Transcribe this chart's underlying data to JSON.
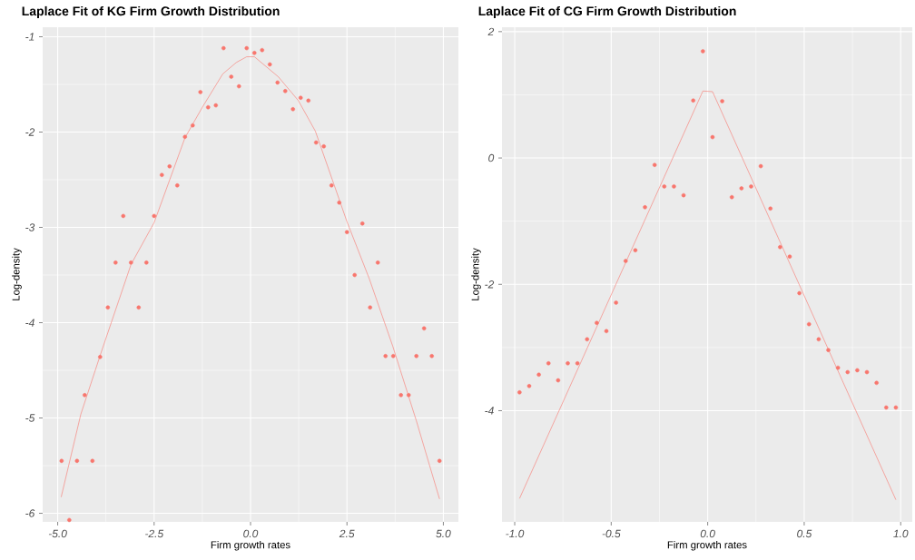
{
  "chart_data": [
    {
      "type": "scatter",
      "title": "Laplace Fit of KG Firm Growth Distribution",
      "xlabel": "Firm growth rates",
      "ylabel": "Log-density",
      "xlim": [
        -5.39,
        5.39
      ],
      "ylim": [
        -6.09,
        -0.9
      ],
      "xticks": [
        {
          "value": -5,
          "label": "-5.0"
        },
        {
          "value": -2.5,
          "label": "-2.5"
        },
        {
          "value": 0,
          "label": "0.0"
        },
        {
          "value": 2.5,
          "label": "2.5"
        },
        {
          "value": 5,
          "label": "5.0"
        }
      ],
      "yticks": [
        -6,
        -5,
        -4,
        -3,
        -2,
        -1
      ],
      "grid": true,
      "series": [
        {
          "color": "#f8766d",
          "marker": "circle",
          "x": [
            -4.9,
            -4.7,
            -4.5,
            -4.3,
            -4.1,
            -3.9,
            -3.7,
            -3.5,
            -3.3,
            -3.1,
            -2.9,
            -2.7,
            -2.5,
            -2.3,
            -2.1,
            -1.9,
            -1.7,
            -1.5,
            -1.3,
            -1.1,
            -0.9,
            -0.7,
            -0.5,
            -0.3,
            -0.1,
            0.1,
            0.3,
            0.5,
            0.7,
            0.9,
            1.1,
            1.3,
            1.5,
            1.7,
            1.9,
            2.1,
            2.3,
            2.5,
            2.7,
            2.9,
            3.1,
            3.3,
            3.5,
            3.7,
            3.9,
            4.1,
            4.3,
            4.5,
            4.7,
            4.9
          ],
          "values": [
            -5.45,
            -6.07,
            -5.45,
            -4.76,
            -5.45,
            -4.36,
            -3.84,
            -3.37,
            -2.88,
            -3.37,
            -3.84,
            -3.37,
            -2.88,
            -2.45,
            -2.36,
            -2.56,
            -2.05,
            -1.93,
            -1.58,
            -1.74,
            -1.72,
            -1.12,
            -1.42,
            -1.52,
            -1.12,
            -1.17,
            -1.14,
            -1.29,
            -1.48,
            -1.57,
            -1.76,
            -1.64,
            -1.67,
            -2.11,
            -2.15,
            -2.56,
            -2.74,
            -3.05,
            -3.5,
            -2.96,
            -3.84,
            -3.37,
            -4.35,
            -4.35,
            -4.76,
            -4.76,
            -4.35,
            -4.06,
            -4.35,
            -5.45
          ]
        },
        {
          "type": "line",
          "color": "#f8766d",
          "marker": "none",
          "x": [
            -4.91,
            -4.4,
            -3.88,
            -3.1,
            -2.5,
            -1.7,
            -1.25,
            -0.72,
            -0.37,
            -0.1,
            0.1,
            0.72,
            1.24,
            1.68,
            2.5,
            3.08,
            3.69,
            4.3,
            4.9
          ],
          "values": [
            -5.83,
            -4.96,
            -4.32,
            -3.39,
            -2.95,
            -2.06,
            -1.74,
            -1.39,
            -1.27,
            -1.21,
            -1.21,
            -1.42,
            -1.67,
            -1.99,
            -2.94,
            -3.54,
            -4.25,
            -5.03,
            -5.85
          ]
        }
      ]
    },
    {
      "type": "scatter",
      "title": "Laplace Fit of CG Firm Growth Distribution",
      "xlabel": "Firm growth rates",
      "ylabel": "Log-density",
      "xlim": [
        -1.066,
        1.06
      ],
      "ylim": [
        -5.76,
        2.07
      ],
      "xticks": [
        {
          "value": -1,
          "label": "-1.0"
        },
        {
          "value": -0.5,
          "label": "-0.5"
        },
        {
          "value": 0,
          "label": "0.0"
        },
        {
          "value": 0.5,
          "label": "0.5"
        },
        {
          "value": 1,
          "label": "1.0"
        }
      ],
      "yticks": [
        -4,
        -2,
        0,
        2
      ],
      "grid": true,
      "series": [
        {
          "color": "#f8766d",
          "marker": "circle",
          "x": [
            -0.975,
            -0.925,
            -0.875,
            -0.825,
            -0.775,
            -0.725,
            -0.675,
            -0.625,
            -0.575,
            -0.525,
            -0.475,
            -0.425,
            -0.375,
            -0.325,
            -0.275,
            -0.225,
            -0.175,
            -0.125,
            -0.075,
            -0.025,
            0.025,
            0.075,
            0.125,
            0.175,
            0.225,
            0.275,
            0.325,
            0.375,
            0.425,
            0.475,
            0.525,
            0.575,
            0.625,
            0.675,
            0.725,
            0.775,
            0.825,
            0.875,
            0.925,
            0.975
          ],
          "values": [
            -3.71,
            -3.61,
            -3.43,
            -3.25,
            -3.52,
            -3.25,
            -3.25,
            -2.87,
            -2.61,
            -2.74,
            -2.29,
            -1.63,
            -1.46,
            -0.78,
            -0.11,
            -0.45,
            -0.45,
            -0.59,
            0.91,
            1.69,
            0.33,
            0.9,
            -0.62,
            -0.48,
            -0.45,
            -0.13,
            -0.8,
            -1.41,
            -1.56,
            -2.14,
            -2.63,
            -2.87,
            -3.04,
            -3.32,
            -3.39,
            -3.36,
            -3.39,
            -3.56,
            -3.95,
            -3.95
          ]
        },
        {
          "type": "line",
          "color": "#f8766d",
          "marker": "none",
          "x": [
            -0.975,
            -0.025,
            0.025,
            0.975
          ],
          "values": [
            -5.39,
            1.06,
            1.05,
            -5.41
          ]
        }
      ]
    }
  ]
}
